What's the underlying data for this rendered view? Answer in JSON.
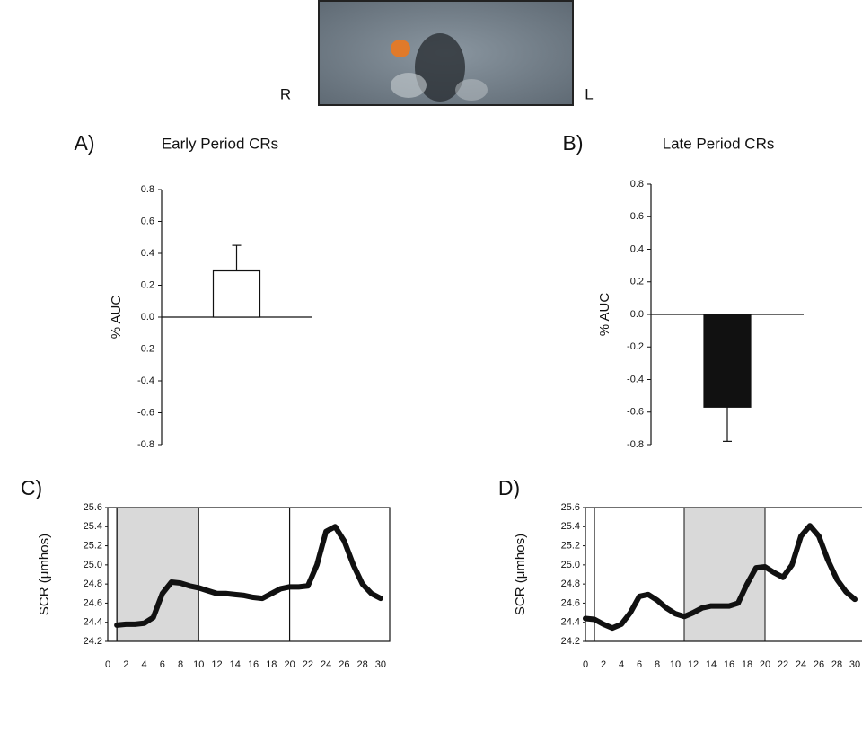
{
  "image": {
    "left_label": "R",
    "right_label": "L"
  },
  "chart_data": [
    {
      "type": "bar",
      "panel_label": "A)",
      "title": "Early Period CRs",
      "ylabel": "% AUC",
      "categories": [
        null
      ],
      "values": [
        0.29
      ],
      "errors": [
        0.16
      ],
      "color": "#ffffff",
      "ylim": [
        -0.8,
        0.8
      ],
      "yticks": [
        -0.8,
        -0.6,
        -0.4,
        -0.2,
        {
          "value": 0,
          "label": "0.0"
        },
        0.2,
        0.4,
        0.6,
        0.8
      ],
      "grid": false
    },
    {
      "type": "bar",
      "panel_label": "B)",
      "title": "Late Period CRs",
      "ylabel": "% AUC",
      "categories": [
        null
      ],
      "values": [
        -0.57
      ],
      "errors": [
        0.21
      ],
      "color": "#111111",
      "ylim": [
        -0.8,
        0.8
      ],
      "yticks": [
        -0.8,
        -0.6,
        -0.4,
        -0.2,
        {
          "value": 0,
          "label": "0.0"
        },
        0.2,
        0.4,
        0.6,
        0.8
      ],
      "grid": false
    },
    {
      "type": "line",
      "panel_label": "C)",
      "ylabel": "SCR (μmhos)",
      "x": [
        1,
        2,
        3,
        4,
        5,
        6,
        7,
        8,
        9,
        10,
        11,
        12,
        13,
        14,
        15,
        16,
        17,
        18,
        19,
        20,
        21,
        22,
        23,
        24,
        25,
        26,
        27,
        28,
        29,
        30
      ],
      "series": [
        {
          "color": "#111111",
          "values": [
            24.37,
            24.38,
            24.38,
            24.39,
            24.45,
            24.7,
            24.82,
            24.81,
            24.78,
            24.76,
            24.73,
            24.7,
            24.7,
            24.69,
            24.68,
            24.66,
            24.65,
            24.7,
            24.75,
            24.77,
            24.77,
            24.78,
            25.0,
            25.35,
            25.4,
            25.25,
            25.0,
            24.8,
            24.7,
            24.65
          ]
        }
      ],
      "shaded_region": [
        1,
        10
      ],
      "vlines": [
        1,
        20
      ],
      "shade_color": "#d9d9d9",
      "xlim": [
        0,
        31
      ],
      "xticks": [
        0,
        2,
        4,
        6,
        8,
        10,
        12,
        14,
        16,
        18,
        20,
        22,
        24,
        26,
        28,
        30
      ],
      "ylim": [
        24.2,
        25.6
      ],
      "yticks": [
        24.2,
        24.4,
        24.6,
        24.8,
        {
          "value": 25,
          "label": "25.0"
        },
        25.2,
        25.4,
        25.6
      ],
      "grid": false
    },
    {
      "type": "line",
      "panel_label": "D)",
      "ylabel": "SCR (μmhos)",
      "x": [
        0,
        1,
        2,
        3,
        4,
        5,
        6,
        7,
        8,
        9,
        10,
        11,
        12,
        13,
        14,
        15,
        16,
        17,
        18,
        19,
        20,
        21,
        22,
        23,
        24,
        25,
        26,
        27,
        28,
        29,
        30
      ],
      "series": [
        {
          "color": "#111111",
          "values": [
            24.44,
            24.43,
            24.38,
            24.34,
            24.38,
            24.5,
            24.67,
            24.69,
            24.63,
            24.55,
            24.49,
            24.46,
            24.5,
            24.55,
            24.57,
            24.57,
            24.57,
            24.6,
            24.8,
            24.97,
            24.98,
            24.92,
            24.87,
            25.0,
            25.3,
            25.41,
            25.3,
            25.05,
            24.85,
            24.72,
            24.64
          ]
        }
      ],
      "shaded_region": [
        11,
        20
      ],
      "vlines": [
        1
      ],
      "shade_color": "#d9d9d9",
      "xlim": [
        0,
        31
      ],
      "xticks": [
        0,
        2,
        4,
        6,
        8,
        10,
        12,
        14,
        16,
        18,
        20,
        22,
        24,
        26,
        28,
        30
      ],
      "ylim": [
        24.2,
        25.6
      ],
      "yticks": [
        24.2,
        24.4,
        24.6,
        24.8,
        {
          "value": 25,
          "label": "25.0"
        },
        25.2,
        25.4,
        25.6
      ],
      "grid": false
    }
  ]
}
